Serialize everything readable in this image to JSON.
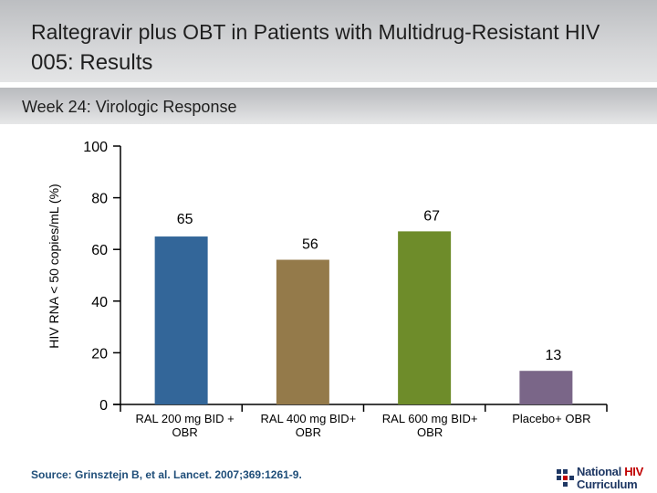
{
  "header": {
    "title_line1": "Raltegravir plus OBT in Patients with Multidrug-Resistant HIV",
    "title_line2": "005: Results",
    "subtitle": "Week 24: Virologic Response"
  },
  "chart_data": {
    "type": "bar",
    "title": "Week 24: Virologic Response",
    "ylabel": "HIV RNA < 50 copies/mL (%)",
    "xlabel": "",
    "ylim": [
      0,
      100
    ],
    "yticks": [
      0,
      20,
      40,
      60,
      80,
      100
    ],
    "categories": [
      [
        "RAL 200 mg BID +",
        "OBR"
      ],
      [
        "RAL 400 mg BID+",
        "OBR"
      ],
      [
        "RAL 600 mg BID+",
        "OBR"
      ],
      [
        "Placebo+ OBR"
      ]
    ],
    "values": [
      65,
      56,
      67,
      13
    ],
    "colors": [
      "#336699",
      "#947a4a",
      "#6e8c2a",
      "#7a6688"
    ],
    "grid": false
  },
  "footer": {
    "source": "Source: Grinsztejn B, et al. Lancet. 2007;369:1261-9.",
    "logo_line1_a": "National ",
    "logo_line1_b": "HIV",
    "logo_line2": "Curriculum"
  }
}
